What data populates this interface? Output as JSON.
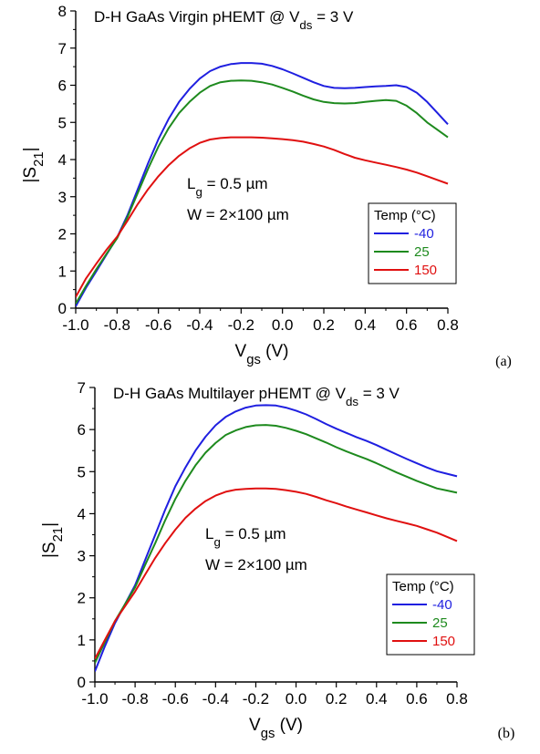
{
  "chart_data": [
    {
      "type": "line",
      "panel_label": "(a)",
      "title": {
        "prefix": "D-H GaAs Virgin pHEMT @ V",
        "sub": "ds",
        "suffix": " = 3 V"
      },
      "xlabel": {
        "main": "V",
        "sub": "gs",
        "suffix": " (V)"
      },
      "ylabel": {
        "pre": "|S",
        "sub": "21",
        "post": "|"
      },
      "xlim": [
        -1.0,
        0.8
      ],
      "ylim": [
        0,
        8
      ],
      "xticks": [
        "-1.0",
        "-0.8",
        "-0.6",
        "-0.4",
        "-0.2",
        "0.0",
        "0.2",
        "0.4",
        "0.6",
        "0.8"
      ],
      "yticks": [
        "0",
        "1",
        "2",
        "3",
        "4",
        "5",
        "6",
        "7",
        "8"
      ],
      "annotations": [
        {
          "main": "L",
          "sub": "g",
          "suffix": " = 0.5 µm"
        },
        {
          "text": "W = 2×100 µm"
        }
      ],
      "legend": {
        "title": "Temp (°C)",
        "placement": "lower-right"
      },
      "x": [
        -1.0,
        -0.95,
        -0.9,
        -0.85,
        -0.8,
        -0.75,
        -0.7,
        -0.65,
        -0.6,
        -0.55,
        -0.5,
        -0.45,
        -0.4,
        -0.35,
        -0.3,
        -0.25,
        -0.2,
        -0.15,
        -0.1,
        -0.05,
        0.0,
        0.05,
        0.1,
        0.15,
        0.2,
        0.25,
        0.3,
        0.35,
        0.4,
        0.45,
        0.5,
        0.55,
        0.6,
        0.65,
        0.7,
        0.75,
        0.8
      ],
      "series": [
        {
          "name": "-40",
          "color": "#1f1fe0",
          "values": [
            0.05,
            0.55,
            1.0,
            1.45,
            1.9,
            2.5,
            3.2,
            3.9,
            4.55,
            5.1,
            5.55,
            5.9,
            6.18,
            6.38,
            6.5,
            6.57,
            6.6,
            6.6,
            6.58,
            6.52,
            6.43,
            6.32,
            6.2,
            6.08,
            5.98,
            5.93,
            5.92,
            5.93,
            5.95,
            5.97,
            5.98,
            6.0,
            5.95,
            5.8,
            5.55,
            5.25,
            4.95
          ]
        },
        {
          "name": "25",
          "color": "#1e8a1e",
          "values": [
            0.12,
            0.6,
            1.05,
            1.47,
            1.88,
            2.45,
            3.1,
            3.75,
            4.35,
            4.85,
            5.25,
            5.55,
            5.8,
            5.98,
            6.08,
            6.12,
            6.13,
            6.12,
            6.08,
            6.02,
            5.93,
            5.83,
            5.72,
            5.62,
            5.55,
            5.52,
            5.51,
            5.52,
            5.55,
            5.58,
            5.6,
            5.58,
            5.45,
            5.25,
            5.0,
            4.8,
            4.6
          ]
        },
        {
          "name": "150",
          "color": "#e01010",
          "values": [
            0.3,
            0.8,
            1.2,
            1.58,
            1.92,
            2.35,
            2.8,
            3.2,
            3.55,
            3.85,
            4.1,
            4.3,
            4.45,
            4.54,
            4.58,
            4.6,
            4.6,
            4.6,
            4.59,
            4.57,
            4.55,
            4.52,
            4.48,
            4.42,
            4.35,
            4.26,
            4.15,
            4.05,
            3.98,
            3.92,
            3.86,
            3.8,
            3.73,
            3.65,
            3.55,
            3.45,
            3.35
          ]
        }
      ]
    },
    {
      "type": "line",
      "panel_label": "(b)",
      "title": {
        "prefix": "D-H GaAs Multilayer pHEMT @ V",
        "sub": "ds",
        "suffix": " = 3 V"
      },
      "xlabel": {
        "main": "V",
        "sub": "gs",
        "suffix": " (V)"
      },
      "ylabel": {
        "pre": "|S",
        "sub": "21",
        "post": "|"
      },
      "xlim": [
        -1.0,
        0.8
      ],
      "ylim": [
        0,
        7
      ],
      "xticks": [
        "-1.0",
        "-0.8",
        "-0.6",
        "-0.4",
        "-0.2",
        "0.0",
        "0.2",
        "0.4",
        "0.6",
        "0.8"
      ],
      "yticks": [
        "0",
        "1",
        "2",
        "3",
        "4",
        "5",
        "6",
        "7"
      ],
      "annotations": [
        {
          "main": "L",
          "sub": "g",
          "suffix": " = 0.5 µm"
        },
        {
          "text": "W = 2×100 µm"
        }
      ],
      "legend": {
        "title": "Temp (°C)",
        "placement": "lower-right"
      },
      "x": [
        -1.0,
        -0.95,
        -0.9,
        -0.85,
        -0.8,
        -0.75,
        -0.7,
        -0.65,
        -0.6,
        -0.55,
        -0.5,
        -0.45,
        -0.4,
        -0.35,
        -0.3,
        -0.25,
        -0.2,
        -0.15,
        -0.1,
        -0.05,
        0.0,
        0.05,
        0.1,
        0.15,
        0.2,
        0.25,
        0.3,
        0.35,
        0.4,
        0.45,
        0.5,
        0.55,
        0.6,
        0.65,
        0.7,
        0.75,
        0.8
      ],
      "series": [
        {
          "name": "-40",
          "color": "#1f1fe0",
          "values": [
            0.25,
            0.85,
            1.4,
            1.85,
            2.3,
            2.9,
            3.5,
            4.1,
            4.65,
            5.1,
            5.5,
            5.83,
            6.1,
            6.3,
            6.43,
            6.52,
            6.57,
            6.58,
            6.57,
            6.52,
            6.45,
            6.36,
            6.25,
            6.13,
            6.02,
            5.92,
            5.82,
            5.73,
            5.63,
            5.52,
            5.41,
            5.3,
            5.2,
            5.1,
            5.01,
            4.95,
            4.89
          ]
        },
        {
          "name": "25",
          "color": "#1e8a1e",
          "values": [
            0.45,
            0.95,
            1.45,
            1.85,
            2.25,
            2.78,
            3.3,
            3.85,
            4.35,
            4.78,
            5.15,
            5.45,
            5.68,
            5.87,
            5.98,
            6.06,
            6.1,
            6.11,
            6.09,
            6.04,
            5.97,
            5.89,
            5.79,
            5.69,
            5.58,
            5.48,
            5.39,
            5.3,
            5.2,
            5.09,
            4.98,
            4.88,
            4.78,
            4.69,
            4.6,
            4.55,
            4.5
          ]
        },
        {
          "name": "150",
          "color": "#e01010",
          "values": [
            0.55,
            1.0,
            1.45,
            1.8,
            2.15,
            2.55,
            2.95,
            3.3,
            3.62,
            3.9,
            4.12,
            4.3,
            4.43,
            4.52,
            4.57,
            4.59,
            4.6,
            4.6,
            4.59,
            4.56,
            4.52,
            4.47,
            4.4,
            4.32,
            4.25,
            4.17,
            4.1,
            4.03,
            3.96,
            3.89,
            3.83,
            3.77,
            3.71,
            3.63,
            3.55,
            3.45,
            3.35
          ]
        }
      ]
    }
  ]
}
